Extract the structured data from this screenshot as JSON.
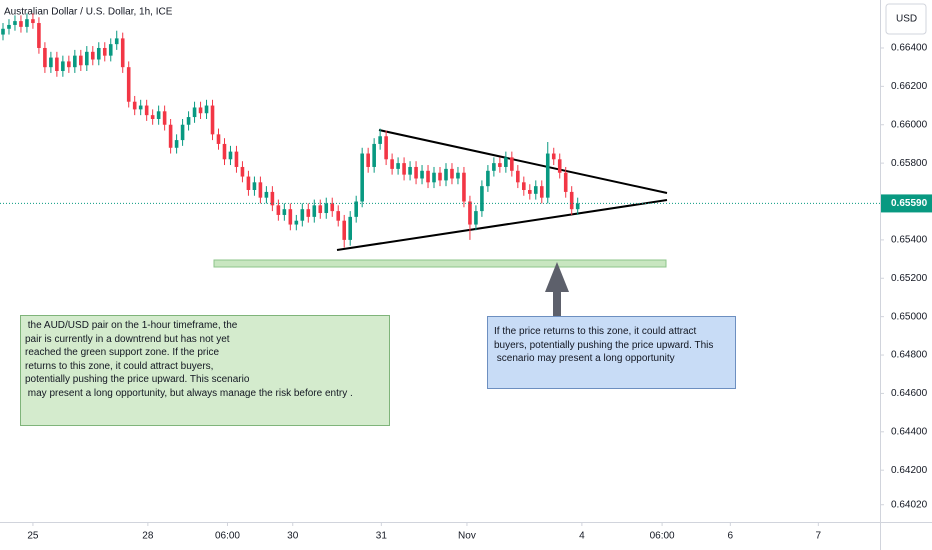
{
  "chart_data": {
    "type": "candlestick",
    "title": "Australian Dollar / U.S. Dollar, 1h, ICE",
    "currency_label": "USD",
    "up_color": "#089981",
    "down_color": "#f23645",
    "grid": false,
    "open": [
      0.6647,
      0.665,
      0.6652,
      0.6654,
      0.6651,
      0.6655,
      0.6653,
      0.664,
      0.663,
      0.6635,
      0.6628,
      0.6633,
      0.663,
      0.6636,
      0.6631,
      0.6638,
      0.6634,
      0.664,
      0.6636,
      0.6642,
      0.6645,
      0.663,
      0.6612,
      0.6608,
      0.661,
      0.6605,
      0.6603,
      0.6607,
      0.66,
      0.6588,
      0.6592,
      0.66,
      0.6604,
      0.6609,
      0.6606,
      0.661,
      0.6595,
      0.659,
      0.6582,
      0.6586,
      0.6578,
      0.6573,
      0.6566,
      0.657,
      0.6562,
      0.6565,
      0.6558,
      0.6553,
      0.6556,
      0.6548,
      0.655,
      0.6556,
      0.6552,
      0.6558,
      0.6554,
      0.6559,
      0.6555,
      0.655,
      0.654,
      0.6552,
      0.656,
      0.6585,
      0.6578,
      0.659,
      0.6594,
      0.6582,
      0.6577,
      0.658,
      0.6574,
      0.6578,
      0.6572,
      0.6576,
      0.657,
      0.6575,
      0.6571,
      0.6577,
      0.6572,
      0.6575,
      0.656,
      0.6548,
      0.6555,
      0.6568,
      0.6576,
      0.658,
      0.6578,
      0.6583,
      0.6576,
      0.657,
      0.6566,
      0.6564,
      0.6568,
      0.6562,
      0.6585,
      0.6582,
      0.6575,
      0.6565,
      0.6556
    ],
    "high": [
      0.6653,
      0.6655,
      0.6657,
      0.6657,
      0.6658,
      0.6658,
      0.6656,
      0.6643,
      0.6638,
      0.6638,
      0.6636,
      0.6636,
      0.6639,
      0.6639,
      0.6641,
      0.6641,
      0.6643,
      0.6643,
      0.6645,
      0.6649,
      0.6648,
      0.6633,
      0.6615,
      0.6613,
      0.6613,
      0.6608,
      0.661,
      0.661,
      0.6603,
      0.6595,
      0.6603,
      0.6607,
      0.6612,
      0.6612,
      0.6613,
      0.6613,
      0.6598,
      0.6593,
      0.6589,
      0.6589,
      0.6581,
      0.6576,
      0.6573,
      0.6573,
      0.6568,
      0.6568,
      0.6561,
      0.6559,
      0.6559,
      0.6553,
      0.6559,
      0.6559,
      0.6561,
      0.6561,
      0.6562,
      0.6562,
      0.6558,
      0.6553,
      0.6555,
      0.6563,
      0.6588,
      0.6588,
      0.6593,
      0.6598,
      0.6597,
      0.6585,
      0.6583,
      0.6583,
      0.6581,
      0.6581,
      0.6579,
      0.6579,
      0.6578,
      0.6578,
      0.658,
      0.658,
      0.6578,
      0.6578,
      0.6563,
      0.6558,
      0.6571,
      0.6579,
      0.6583,
      0.6583,
      0.6586,
      0.6586,
      0.6579,
      0.6573,
      0.6569,
      0.6571,
      0.6571,
      0.6591,
      0.6588,
      0.6585,
      0.6578,
      0.6568,
      0.6562
    ],
    "low": [
      0.6644,
      0.6647,
      0.6649,
      0.6648,
      0.6648,
      0.665,
      0.6637,
      0.6627,
      0.6627,
      0.6625,
      0.6625,
      0.6627,
      0.6627,
      0.6628,
      0.6628,
      0.6631,
      0.6631,
      0.6633,
      0.6633,
      0.6639,
      0.6627,
      0.6609,
      0.6605,
      0.6605,
      0.6602,
      0.66,
      0.66,
      0.6597,
      0.6585,
      0.6585,
      0.6589,
      0.6597,
      0.6601,
      0.6603,
      0.6603,
      0.6592,
      0.6587,
      0.6579,
      0.6579,
      0.6575,
      0.657,
      0.6563,
      0.6563,
      0.6559,
      0.6559,
      0.6555,
      0.655,
      0.655,
      0.6545,
      0.6545,
      0.6547,
      0.6549,
      0.6549,
      0.6551,
      0.6551,
      0.6552,
      0.6547,
      0.6536,
      0.6537,
      0.6549,
      0.6557,
      0.6575,
      0.6575,
      0.6587,
      0.6579,
      0.6574,
      0.6574,
      0.6571,
      0.6571,
      0.6569,
      0.6569,
      0.6567,
      0.6567,
      0.6568,
      0.6568,
      0.6569,
      0.6569,
      0.6557,
      0.654,
      0.6545,
      0.6552,
      0.6565,
      0.6573,
      0.6575,
      0.6575,
      0.6573,
      0.6567,
      0.6563,
      0.6561,
      0.6561,
      0.6559,
      0.6559,
      0.6579,
      0.6572,
      0.6562,
      0.6553,
      0.6553
    ],
    "close": [
      0.665,
      0.6652,
      0.6654,
      0.6651,
      0.6655,
      0.6653,
      0.664,
      0.663,
      0.6635,
      0.6628,
      0.6633,
      0.663,
      0.6636,
      0.6631,
      0.6638,
      0.6634,
      0.664,
      0.6636,
      0.6642,
      0.6645,
      0.663,
      0.6612,
      0.6608,
      0.661,
      0.6605,
      0.6603,
      0.6607,
      0.66,
      0.6588,
      0.6592,
      0.66,
      0.6604,
      0.6609,
      0.6606,
      0.661,
      0.6595,
      0.659,
      0.6582,
      0.6586,
      0.6578,
      0.6573,
      0.6566,
      0.657,
      0.6562,
      0.6565,
      0.6558,
      0.6553,
      0.6556,
      0.6548,
      0.655,
      0.6556,
      0.6552,
      0.6558,
      0.6554,
      0.6559,
      0.6555,
      0.655,
      0.654,
      0.6552,
      0.656,
      0.6585,
      0.6578,
      0.659,
      0.6594,
      0.6582,
      0.6577,
      0.658,
      0.6574,
      0.6578,
      0.6572,
      0.6576,
      0.657,
      0.6575,
      0.6571,
      0.6577,
      0.6572,
      0.6575,
      0.656,
      0.6548,
      0.6555,
      0.6568,
      0.6576,
      0.658,
      0.6578,
      0.6583,
      0.6576,
      0.657,
      0.6566,
      0.6564,
      0.6568,
      0.6562,
      0.6585,
      0.6582,
      0.6575,
      0.6565,
      0.6556,
      0.6559
    ],
    "last_price": {
      "value": 0.6559,
      "label": "0.65590"
    },
    "ylim": [
      0.6393,
      0.6665
    ],
    "yticks": [
      {
        "value": 0.664,
        "label": "0.66400"
      },
      {
        "value": 0.662,
        "label": "0.66200"
      },
      {
        "value": 0.66,
        "label": "0.66000"
      },
      {
        "value": 0.658,
        "label": "0.65800"
      },
      {
        "value": 0.654,
        "label": "0.65400"
      },
      {
        "value": 0.652,
        "label": "0.65200"
      },
      {
        "value": 0.65,
        "label": "0.65000"
      },
      {
        "value": 0.648,
        "label": "0.64800"
      },
      {
        "value": 0.646,
        "label": "0.64600"
      },
      {
        "value": 0.644,
        "label": "0.64400"
      },
      {
        "value": 0.642,
        "label": "0.64200"
      },
      {
        "value": 0.6402,
        "label": "0.64020"
      }
    ],
    "xlim": [
      -0.5,
      146.5
    ],
    "xticks": [
      {
        "value": 5,
        "label": "25"
      },
      {
        "value": 24.2,
        "label": "28"
      },
      {
        "value": 37.5,
        "label": "06:00"
      },
      {
        "value": 48.4,
        "label": "30"
      },
      {
        "value": 63.2,
        "label": "31"
      },
      {
        "value": 77.5,
        "label": "Nov"
      },
      {
        "value": 96.7,
        "label": "4"
      },
      {
        "value": 110.1,
        "label": "06:00"
      },
      {
        "value": 121.5,
        "label": "6"
      },
      {
        "value": 136.2,
        "label": "7"
      }
    ],
    "annotations": [
      {
        "lines": [
          " the AUD/USD pair on the 1-hour timeframe, the",
          "pair is currently in a downtrend but has not yet",
          "reached the green support zone. If the price",
          "returns to this zone, it could attract buyers,",
          "potentially pushing the price upward. This scenario",
          " may present a long opportunity, but always manage the risk before entry ."
        ]
      },
      {
        "lines": [
          "If the price returns to this zone, it could attract",
          "buyers, potentially pushing the price upward. This",
          " scenario may present a long opportunity"
        ]
      }
    ]
  }
}
